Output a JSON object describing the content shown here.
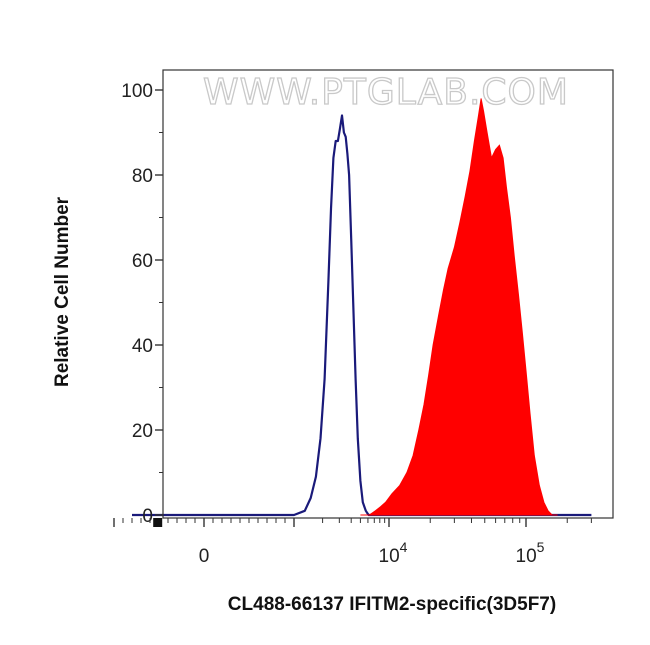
{
  "watermark": "WWW.PTGLAB.COM",
  "chart_data": {
    "type": "area",
    "title": "",
    "xlabel": "CL488-66137 IFITM2-specific(3D5F7)",
    "ylabel": "Relative Cell Number",
    "xscale": "biexponential",
    "ylim": [
      0,
      100
    ],
    "yticks": [
      0,
      20,
      40,
      60,
      80,
      100
    ],
    "xtick_labels": [
      {
        "value": 0,
        "base": "0",
        "exp": ""
      },
      {
        "value": 10000,
        "base": "10",
        "exp": "4"
      },
      {
        "value": 100000,
        "base": "10",
        "exp": "5"
      }
    ],
    "grid": false,
    "legend": "none",
    "series": [
      {
        "style": "outline",
        "color": "#1a1a7a",
        "points": [
          [
            -800,
            0
          ],
          [
            -500,
            0
          ],
          [
            -300,
            0
          ],
          [
            -150,
            0
          ],
          [
            0,
            0
          ],
          [
            200,
            0
          ],
          [
            600,
            0
          ],
          [
            1000,
            0
          ],
          [
            1300,
            1
          ],
          [
            1500,
            4
          ],
          [
            1700,
            9
          ],
          [
            1900,
            18
          ],
          [
            2100,
            32
          ],
          [
            2300,
            55
          ],
          [
            2450,
            72
          ],
          [
            2600,
            84
          ],
          [
            2750,
            88
          ],
          [
            2900,
            88
          ],
          [
            3050,
            91
          ],
          [
            3200,
            94
          ],
          [
            3350,
            90
          ],
          [
            3500,
            89
          ],
          [
            3650,
            85
          ],
          [
            3800,
            80
          ],
          [
            4000,
            65
          ],
          [
            4200,
            50
          ],
          [
            4450,
            32
          ],
          [
            4700,
            18
          ],
          [
            5000,
            8
          ],
          [
            5300,
            3
          ],
          [
            5700,
            1
          ],
          [
            6100,
            0
          ],
          [
            7000,
            0
          ],
          [
            9000,
            0
          ],
          [
            20000,
            0
          ],
          [
            50000,
            0
          ],
          [
            100000,
            0
          ],
          [
            200000,
            0
          ],
          [
            300000,
            0
          ]
        ]
      },
      {
        "style": "filled",
        "color": "#ff0000",
        "points": [
          [
            5000,
            0
          ],
          [
            6200,
            0
          ],
          [
            7200,
            1
          ],
          [
            8200,
            2
          ],
          [
            9200,
            3
          ],
          [
            10500,
            5
          ],
          [
            12000,
            7
          ],
          [
            13500,
            10
          ],
          [
            15000,
            14
          ],
          [
            16500,
            20
          ],
          [
            18000,
            26
          ],
          [
            19500,
            33
          ],
          [
            21000,
            40
          ],
          [
            23000,
            47
          ],
          [
            25000,
            53
          ],
          [
            27000,
            58
          ],
          [
            30000,
            63
          ],
          [
            33000,
            69
          ],
          [
            36000,
            75
          ],
          [
            39000,
            81
          ],
          [
            42000,
            88
          ],
          [
            45000,
            94
          ],
          [
            47000,
            98
          ],
          [
            49000,
            95
          ],
          [
            52000,
            90
          ],
          [
            56000,
            84
          ],
          [
            60000,
            86
          ],
          [
            64000,
            87
          ],
          [
            68000,
            84
          ],
          [
            72000,
            77
          ],
          [
            77000,
            70
          ],
          [
            82000,
            61
          ],
          [
            88000,
            52
          ],
          [
            94000,
            43
          ],
          [
            100000,
            34
          ],
          [
            107000,
            24
          ],
          [
            115000,
            14
          ],
          [
            125000,
            7
          ],
          [
            135000,
            3
          ],
          [
            145000,
            1
          ],
          [
            155000,
            0
          ],
          [
            170000,
            0
          ]
        ]
      }
    ]
  }
}
